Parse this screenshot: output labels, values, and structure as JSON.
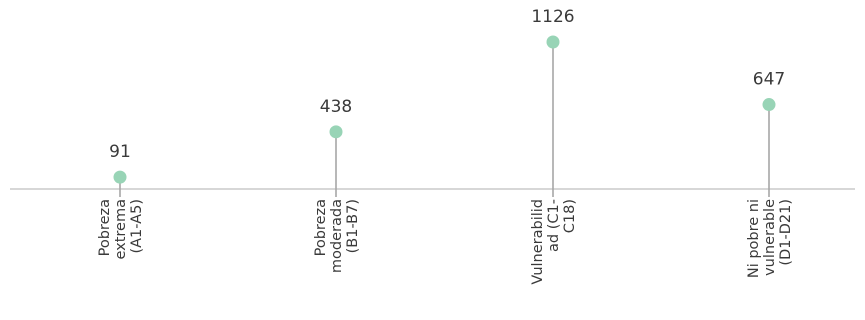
{
  "chart_data": {
    "type": "lollipop",
    "categories": [
      [
        "Pobreza",
        "extrema",
        "(A1-A5)"
      ],
      [
        "Pobreza",
        "moderada",
        "(B1-B7)"
      ],
      [
        "Vulnerabilid",
        "ad (C1-",
        "C18)"
      ],
      [
        "Ni pobre ni",
        "vulnerable",
        "(D1-D21)"
      ]
    ],
    "values": [
      91,
      438,
      1126,
      647
    ],
    "value_labels": [
      "91",
      "438",
      "1126",
      "647"
    ],
    "title": "",
    "xlabel": "",
    "ylabel": "",
    "grid": false,
    "legend": "none",
    "colors": {
      "marker": "#98d4b6",
      "stem": "#a6a6a6",
      "axis": "#bfbfbf",
      "text": "#3a3a3a"
    }
  }
}
